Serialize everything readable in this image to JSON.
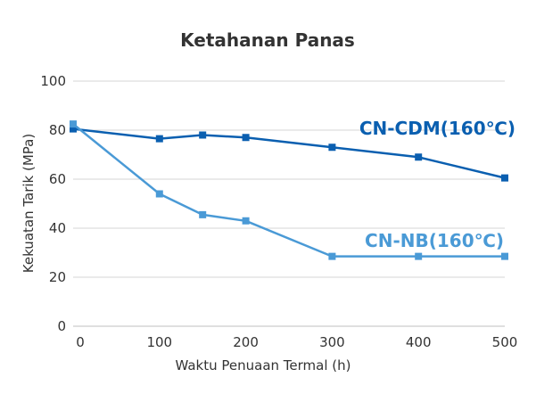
{
  "chart_data": {
    "type": "line",
    "title": "Ketahanan Panas",
    "xlabel": "Waktu Penuaan Termal (h)",
    "ylabel": "Kekuatan Tarik (MPa)",
    "xlim": [
      0,
      500
    ],
    "ylim": [
      0,
      100
    ],
    "xticks": [
      0,
      100,
      200,
      300,
      400,
      500
    ],
    "yticks": [
      0,
      20,
      40,
      60,
      80,
      100
    ],
    "grid": "horizontal",
    "series": [
      {
        "name": "CN-CDM(160℃)",
        "color": "#0a5fb0",
        "x": [
          0,
          100,
          150,
          200,
          300,
          400,
          500
        ],
        "values": [
          80.5,
          76.5,
          78,
          77,
          73,
          69,
          60.5
        ]
      },
      {
        "name": "CN-NB(160℃)",
        "color": "#4a9ad6",
        "x": [
          0,
          100,
          150,
          200,
          300,
          400,
          500
        ],
        "values": [
          82.5,
          54,
          45.5,
          43,
          28.5,
          28.5,
          28.5
        ]
      }
    ]
  }
}
